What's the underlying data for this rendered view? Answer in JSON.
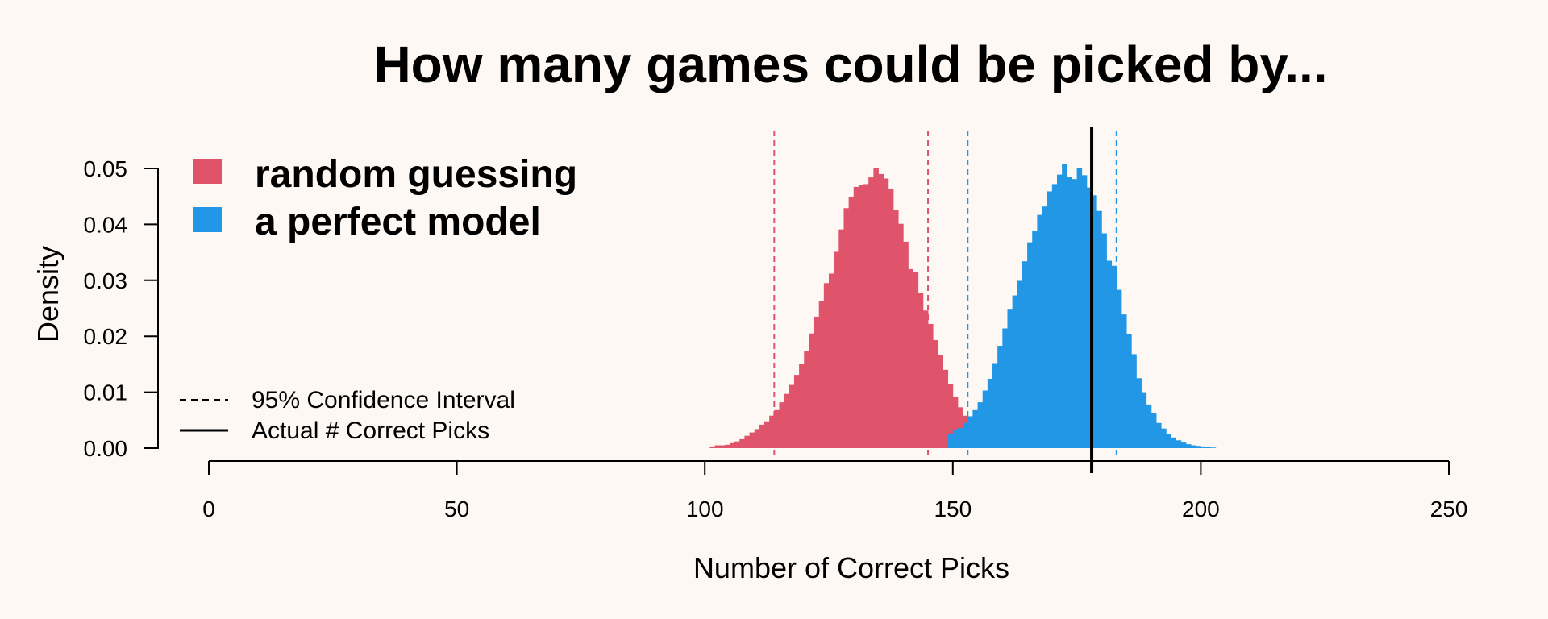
{
  "chart_data": {
    "type": "bar",
    "title": "How many games could be picked by...",
    "xlabel": "Number of Correct Picks",
    "ylabel": "Density",
    "xlim": [
      0,
      250
    ],
    "ylim": [
      0,
      0.05
    ],
    "x_ticks": [
      0,
      50,
      100,
      150,
      200,
      250
    ],
    "x_tick_labels": [
      "0",
      "50",
      "100",
      "150",
      "200",
      "250"
    ],
    "y_ticks": [
      0,
      0.01,
      0.02,
      0.03,
      0.04,
      0.05
    ],
    "y_tick_labels": [
      "0.00",
      "0.01",
      "0.02",
      "0.03",
      "0.04",
      "0.05"
    ],
    "grid": false,
    "legend_position": "top-left",
    "series": [
      {
        "name": "random guessing",
        "color": "#df536b",
        "bin_start": 101,
        "bin_width": 1,
        "density": [
          0.0003,
          0.0005,
          0.0005,
          0.0006,
          0.0009,
          0.0012,
          0.0016,
          0.0022,
          0.0028,
          0.0034,
          0.0042,
          0.0048,
          0.0058,
          0.0068,
          0.0082,
          0.0097,
          0.0113,
          0.0131,
          0.015,
          0.0173,
          0.0205,
          0.0235,
          0.0263,
          0.0295,
          0.0312,
          0.0351,
          0.0391,
          0.0429,
          0.0449,
          0.0467,
          0.0471,
          0.0472,
          0.0484,
          0.05,
          0.049,
          0.0482,
          0.0464,
          0.0426,
          0.0401,
          0.0369,
          0.032,
          0.0315,
          0.0277,
          0.0246,
          0.0222,
          0.0193,
          0.0166,
          0.014,
          0.0114,
          0.0092,
          0.0073,
          0.0058,
          0.0046,
          0.0035,
          0.0027,
          0.002,
          0.0015,
          0.0011,
          0.0008,
          0.0006,
          0.0004,
          0.0003,
          0.0002,
          0.0002,
          0.0001
        ]
      },
      {
        "name": "a perfect model",
        "color": "#2297e6",
        "bin_start": 149,
        "bin_width": 1,
        "density": [
          0.0025,
          0.0032,
          0.0036,
          0.0045,
          0.0057,
          0.0068,
          0.0082,
          0.0103,
          0.0124,
          0.0152,
          0.0183,
          0.0214,
          0.0249,
          0.0273,
          0.0299,
          0.0334,
          0.0368,
          0.0389,
          0.0417,
          0.0432,
          0.0459,
          0.0472,
          0.0489,
          0.0508,
          0.0485,
          0.0481,
          0.0501,
          0.0488,
          0.0466,
          0.0452,
          0.0424,
          0.0384,
          0.0335,
          0.0326,
          0.0283,
          0.0239,
          0.0204,
          0.0168,
          0.0125,
          0.01,
          0.0078,
          0.0063,
          0.0045,
          0.0035,
          0.0025,
          0.0019,
          0.0014,
          0.001,
          0.0007,
          0.0005,
          0.0004,
          0.0003,
          0.0002,
          0.0001
        ]
      }
    ],
    "reference_lines": [
      {
        "label": "95% Confidence Interval",
        "x": 114,
        "color": "#df536b",
        "style": "dashed"
      },
      {
        "label": "95% Confidence Interval",
        "x": 145,
        "color": "#df536b",
        "style": "dashed"
      },
      {
        "label": "95% Confidence Interval",
        "x": 153,
        "color": "#2297e6",
        "style": "dashed"
      },
      {
        "label": "95% Confidence Interval",
        "x": 183,
        "color": "#2297e6",
        "style": "dashed"
      },
      {
        "label": "Actual # Correct Picks",
        "x": 178,
        "color": "#000000",
        "style": "solid"
      }
    ],
    "legend_series": [
      "random guessing",
      "a perfect model"
    ],
    "legend_lines": [
      {
        "label": "95% Confidence Interval",
        "style": "dashed"
      },
      {
        "label": "Actual # Correct Picks",
        "style": "solid"
      }
    ]
  }
}
